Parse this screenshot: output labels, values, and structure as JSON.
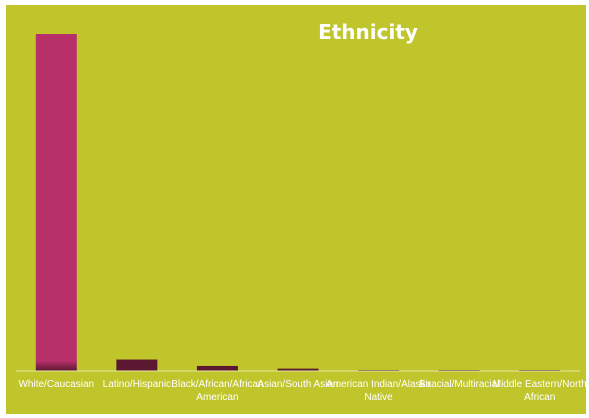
{
  "colors": {
    "background": "#c0c52c",
    "bar": "#b7306a",
    "bar_dark": "#5c1830",
    "axis": "#e6e9a6",
    "text": "#ffffff"
  },
  "chart_data": {
    "type": "bar",
    "title": "Ethnicity",
    "xlabel": "",
    "ylabel": "",
    "categories": [
      [
        "White/Caucasian"
      ],
      [
        "Latino/Hispanic"
      ],
      [
        "Black/African/African",
        "American"
      ],
      [
        "Asian/South Asian"
      ],
      [
        "American Indian/Alaska",
        "Native"
      ],
      [
        "Biracial/Multiracial"
      ],
      [
        "Middle Eastern/North",
        "African"
      ]
    ],
    "values": [
      100,
      3.4,
      1.5,
      0.7,
      0.3,
      0.3,
      0.3
    ],
    "ylim": [
      0,
      100
    ],
    "grid": false,
    "legend": "none"
  }
}
